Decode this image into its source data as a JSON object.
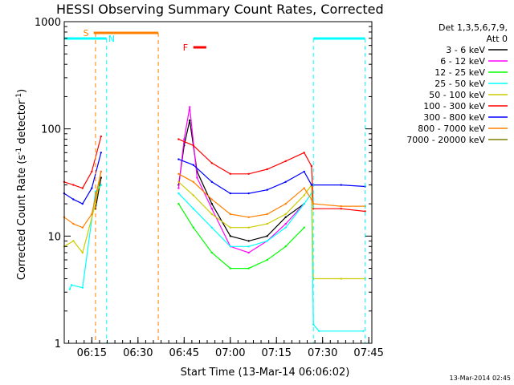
{
  "chart_data": {
    "type": "line",
    "title": "HESSI Observing Summary Count Rates, Corrected",
    "xlabel": "Start Time (13-Mar-14 06:06:02)",
    "ylabel_main": "Corrected Count Rate (s",
    "ylabel_sup1": "-1",
    "ylabel_mid": " detector",
    "ylabel_sup2": "-1",
    "ylabel_end": ")",
    "yscale": "log",
    "ylim": [
      1,
      1000
    ],
    "xlim": [
      6.1006,
      7.7667
    ],
    "x_ticks": [
      {
        "v": 6.25,
        "label": "06:15"
      },
      {
        "v": 6.5,
        "label": "06:30"
      },
      {
        "v": 6.75,
        "label": "06:45"
      },
      {
        "v": 7.0,
        "label": "07:00"
      },
      {
        "v": 7.25,
        "label": "07:15"
      },
      {
        "v": 7.5,
        "label": "07:30"
      },
      {
        "v": 7.75,
        "label": "07:45"
      }
    ],
    "y_ticks": [
      {
        "v": 1,
        "label": "1"
      },
      {
        "v": 10,
        "label": "10"
      },
      {
        "v": 100,
        "label": "100"
      },
      {
        "v": 1000,
        "label": "1000"
      }
    ],
    "legend_header1": "Det 1,3,5,6,7,9,",
    "legend_header2": "Att 0",
    "grid": false,
    "series": [
      {
        "name": "3 - 6 keV",
        "color": "#000000",
        "x": [
          6.1,
          6.2,
          6.27,
          6.3,
          6.31,
          6.7,
          6.72,
          6.75,
          6.78,
          6.82,
          6.9,
          7.0,
          7.1,
          7.2,
          7.3,
          7.4,
          7.45,
          7.5,
          7.6,
          7.7,
          7.73
        ],
        "y": [
          null,
          null,
          18,
          35,
          null,
          null,
          30,
          70,
          120,
          40,
          20,
          10,
          9,
          10,
          15,
          20,
          null,
          null,
          null,
          null,
          null
        ]
      },
      {
        "name": "6 - 12 keV",
        "color": "#ff00ff",
        "x": [
          6.27,
          6.3,
          6.31,
          6.7,
          6.72,
          6.75,
          6.78,
          6.82,
          6.9,
          7.0,
          7.1,
          7.2,
          7.3,
          7.4,
          7.45
        ],
        "y": [
          22,
          40,
          null,
          null,
          28,
          80,
          160,
          35,
          18,
          8,
          7,
          9,
          13,
          20,
          null
        ]
      },
      {
        "name": "12 - 25 keV",
        "color": "#00ff00",
        "x": [
          6.27,
          6.3,
          6.31,
          6.7,
          6.72,
          6.8,
          6.9,
          7.0,
          7.1,
          7.2,
          7.3,
          7.4,
          7.45
        ],
        "y": [
          25,
          30,
          null,
          null,
          20,
          12,
          7,
          5,
          5,
          6,
          8,
          12,
          null
        ]
      },
      {
        "name": "25 - 50 keV",
        "color": "#00ffff",
        "x": [
          6.13,
          6.14,
          6.2,
          6.27,
          6.3,
          6.31,
          6.7,
          6.72,
          6.8,
          6.9,
          7.0,
          7.1,
          7.2,
          7.3,
          7.4,
          7.44,
          7.45,
          7.48,
          7.72,
          7.73
        ],
        "y": [
          3.2,
          3.5,
          3.3,
          26,
          30,
          null,
          null,
          25,
          18,
          12,
          8,
          8,
          9,
          12,
          20,
          25,
          1.5,
          1.3,
          1.3,
          null
        ]
      },
      {
        "name": "50 - 100 keV",
        "color": "#cccc00",
        "x": [
          6.1,
          6.15,
          6.2,
          6.27,
          6.3,
          6.31,
          6.7,
          6.72,
          6.8,
          6.9,
          7.0,
          7.1,
          7.2,
          7.3,
          7.4,
          7.44,
          7.45,
          7.6,
          7.73
        ],
        "y": [
          8,
          9,
          7,
          20,
          40,
          null,
          null,
          32,
          24,
          16,
          12,
          12,
          13,
          16,
          24,
          30,
          4,
          4,
          4
        ]
      },
      {
        "name": "100 - 300 keV",
        "color": "#ff0000",
        "x": [
          6.1,
          6.15,
          6.2,
          6.25,
          6.3,
          6.31,
          6.7,
          6.72,
          6.8,
          6.9,
          7.0,
          7.1,
          7.2,
          7.3,
          7.4,
          7.44,
          7.45,
          7.6,
          7.73
        ],
        "y": [
          32,
          30,
          28,
          40,
          85,
          null,
          null,
          80,
          70,
          48,
          38,
          38,
          42,
          50,
          60,
          45,
          18,
          18,
          17
        ]
      },
      {
        "name": "300 - 800 keV",
        "color": "#0000ff",
        "x": [
          6.1,
          6.15,
          6.2,
          6.25,
          6.3,
          6.31,
          6.7,
          6.72,
          6.8,
          6.9,
          7.0,
          7.1,
          7.2,
          7.3,
          7.4,
          7.44,
          7.45,
          7.6,
          7.73
        ],
        "y": [
          25,
          22,
          20,
          28,
          60,
          null,
          null,
          52,
          46,
          32,
          25,
          25,
          27,
          32,
          40,
          30,
          30,
          30,
          29
        ]
      },
      {
        "name": "800 - 7000 keV",
        "color": "#ff8000",
        "x": [
          6.1,
          6.15,
          6.2,
          6.25,
          6.3,
          6.31,
          6.7,
          6.72,
          6.8,
          6.9,
          7.0,
          7.1,
          7.2,
          7.3,
          7.4,
          7.44,
          7.45,
          7.6,
          7.73
        ],
        "y": [
          15,
          13,
          12,
          16,
          40,
          null,
          null,
          38,
          32,
          22,
          16,
          15,
          16,
          20,
          28,
          22,
          20,
          19,
          19
        ]
      },
      {
        "name": "7000 - 20000 keV",
        "color": "#808000",
        "x": [
          6.1,
          6.2,
          6.25,
          6.3
        ],
        "y": [
          null,
          null,
          null,
          null
        ]
      }
    ],
    "annotations": [
      {
        "label": "S",
        "color": "#ff8000",
        "x_start": 6.26,
        "x_end": 6.61,
        "y": 730
      },
      {
        "label": "N",
        "color": "#00ffff"
      },
      {
        "label": "F",
        "color": "#ff0000",
        "x_start": 6.8,
        "x_end": 6.87,
        "y": 540
      }
    ],
    "timestamp": "13-Mar-2014 02:45"
  }
}
